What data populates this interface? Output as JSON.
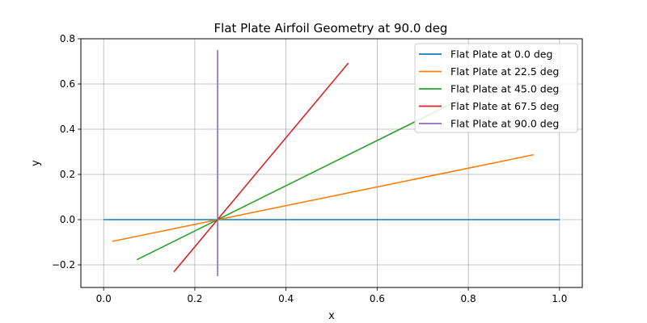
{
  "chart_data": {
    "type": "line",
    "title": "Flat Plate Airfoil Geometry at 90.0 deg",
    "xlabel": "x",
    "ylabel": "y",
    "xlim": [
      -0.05,
      1.05
    ],
    "ylim": [
      -0.3,
      0.8
    ],
    "xticks": [
      0.0,
      0.2,
      0.4,
      0.6,
      0.8,
      1.0
    ],
    "xtick_labels": [
      "0.0",
      "0.2",
      "0.4",
      "0.6",
      "0.8",
      "1.0"
    ],
    "yticks": [
      -0.2,
      0.0,
      0.2,
      0.4,
      0.6,
      0.8
    ],
    "ytick_labels": [
      "−0.2",
      "0.0",
      "0.2",
      "0.4",
      "0.6",
      "0.8"
    ],
    "grid": true,
    "legend_position": "top-right",
    "series": [
      {
        "name": "Flat Plate at 0.0 deg",
        "color": "#1f77b4",
        "x": [
          0.0,
          1.0
        ],
        "y": [
          0.0,
          0.0
        ]
      },
      {
        "name": "Flat Plate at 22.5 deg",
        "color": "#ff7f0e",
        "x": [
          0.019,
          0.943
        ],
        "y": [
          -0.096,
          0.287
        ]
      },
      {
        "name": "Flat Plate at 45.0 deg",
        "color": "#2ca02c",
        "x": [
          0.073,
          0.78
        ],
        "y": [
          -0.177,
          0.53
        ]
      },
      {
        "name": "Flat Plate at 67.5 deg",
        "color": "#d62728",
        "x": [
          0.154,
          0.537
        ],
        "y": [
          -0.231,
          0.693
        ]
      },
      {
        "name": "Flat Plate at 90.0 deg",
        "color": "#9467bd",
        "x": [
          0.25,
          0.25
        ],
        "y": [
          -0.25,
          0.75
        ]
      }
    ]
  }
}
